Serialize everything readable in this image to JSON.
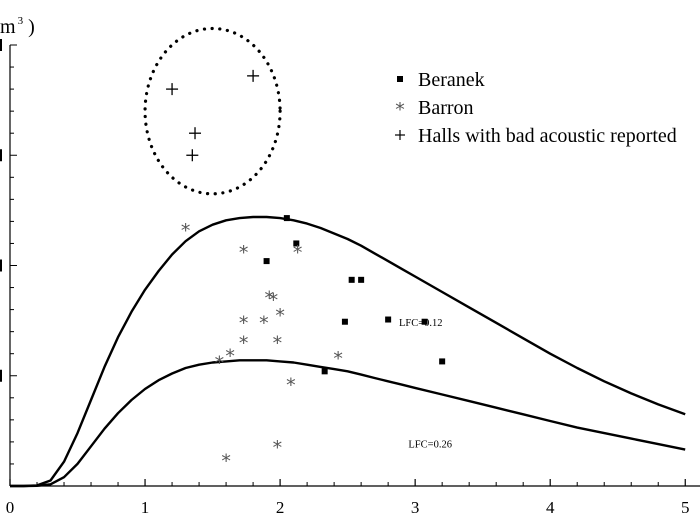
{
  "chart_data": {
    "type": "scatter",
    "title": "",
    "xlabel": "",
    "ylabel_fragment": "m",
    "ylabel_superscript": "3",
    "ylabel_tail": ")",
    "xlim": [
      0,
      5.05
    ],
    "ylim": [
      0,
      400
    ],
    "x_ticks": [
      0,
      1,
      2,
      3,
      4,
      5
    ],
    "x_tick_labels": [
      "0",
      "1",
      "2",
      "3",
      "4",
      "5"
    ],
    "grid": false,
    "legend_position": "top-right",
    "series": [
      {
        "name": "Beranek",
        "marker": "square",
        "legend_symbol": "■",
        "points": [
          [
            2.05,
            243
          ],
          [
            2.12,
            220
          ],
          [
            1.9,
            204
          ],
          [
            2.53,
            187
          ],
          [
            2.6,
            187
          ],
          [
            2.48,
            149
          ],
          [
            2.8,
            151
          ],
          [
            3.07,
            149
          ],
          [
            3.2,
            113
          ],
          [
            2.33,
            104
          ]
        ]
      },
      {
        "name": "Barron",
        "marker": "asterisk",
        "legend_symbol": "*",
        "points": [
          [
            1.3,
            234
          ],
          [
            1.73,
            214
          ],
          [
            2.13,
            214
          ],
          [
            1.92,
            173
          ],
          [
            1.95,
            171
          ],
          [
            2.0,
            157
          ],
          [
            1.73,
            150
          ],
          [
            1.88,
            150
          ],
          [
            1.73,
            132
          ],
          [
            1.98,
            132
          ],
          [
            1.63,
            120
          ],
          [
            1.55,
            114
          ],
          [
            2.43,
            118
          ],
          [
            2.08,
            94
          ],
          [
            1.98,
            37
          ],
          [
            1.6,
            25
          ]
        ]
      },
      {
        "name": "Halls with bad acoustic reported",
        "marker": "plus",
        "legend_symbol": "+",
        "points": [
          [
            1.2,
            360
          ],
          [
            1.8,
            372
          ],
          [
            1.37,
            320
          ],
          [
            1.35,
            300
          ]
        ]
      }
    ],
    "curves": [
      {
        "label": "LFC=0.12",
        "label_at": [
          2.88,
          145
        ],
        "x": [
          0.0,
          0.1,
          0.2,
          0.3,
          0.4,
          0.5,
          0.6,
          0.7,
          0.8,
          0.9,
          1.0,
          1.1,
          1.2,
          1.3,
          1.4,
          1.5,
          1.6,
          1.7,
          1.8,
          1.9,
          2.0,
          2.1,
          2.2,
          2.3,
          2.4,
          2.5,
          2.6,
          2.7,
          2.8,
          2.9,
          3.0,
          3.2,
          3.4,
          3.6,
          3.8,
          4.0,
          4.2,
          4.4,
          4.6,
          4.8,
          5.0
        ],
        "y": [
          0,
          0,
          0.5,
          5,
          22,
          48,
          78,
          108,
          135,
          158,
          178,
          195,
          210,
          222,
          231,
          237,
          241,
          243,
          244,
          244,
          243,
          241,
          238,
          234,
          229,
          224,
          218,
          211,
          204,
          197,
          190,
          176,
          162,
          148,
          134,
          120,
          107,
          95,
          84,
          74,
          65
        ]
      },
      {
        "label": "LFC=0.26",
        "label_at": [
          2.95,
          35
        ],
        "x": [
          0.0,
          0.1,
          0.2,
          0.3,
          0.4,
          0.5,
          0.6,
          0.7,
          0.8,
          0.9,
          1.0,
          1.1,
          1.2,
          1.3,
          1.4,
          1.5,
          1.6,
          1.7,
          1.8,
          1.9,
          2.0,
          2.1,
          2.2,
          2.3,
          2.4,
          2.5,
          2.6,
          2.7,
          2.8,
          2.9,
          3.0,
          3.2,
          3.4,
          3.6,
          3.8,
          4.0,
          4.2,
          4.4,
          4.6,
          4.8,
          5.0
        ],
        "y": [
          0,
          0,
          0.2,
          1.5,
          8,
          20,
          36,
          52,
          66,
          78,
          88,
          96,
          102,
          107,
          110,
          112,
          113,
          114,
          114,
          114,
          113,
          112,
          110,
          108,
          106,
          104,
          101,
          98,
          95,
          92,
          89,
          83,
          77,
          71,
          65,
          59,
          53,
          48,
          43,
          38,
          33
        ]
      }
    ],
    "highlight_circle": {
      "style": "dotted",
      "center": [
        1.5,
        340
      ],
      "radius_x": 0.5,
      "radius_y": 75
    }
  }
}
